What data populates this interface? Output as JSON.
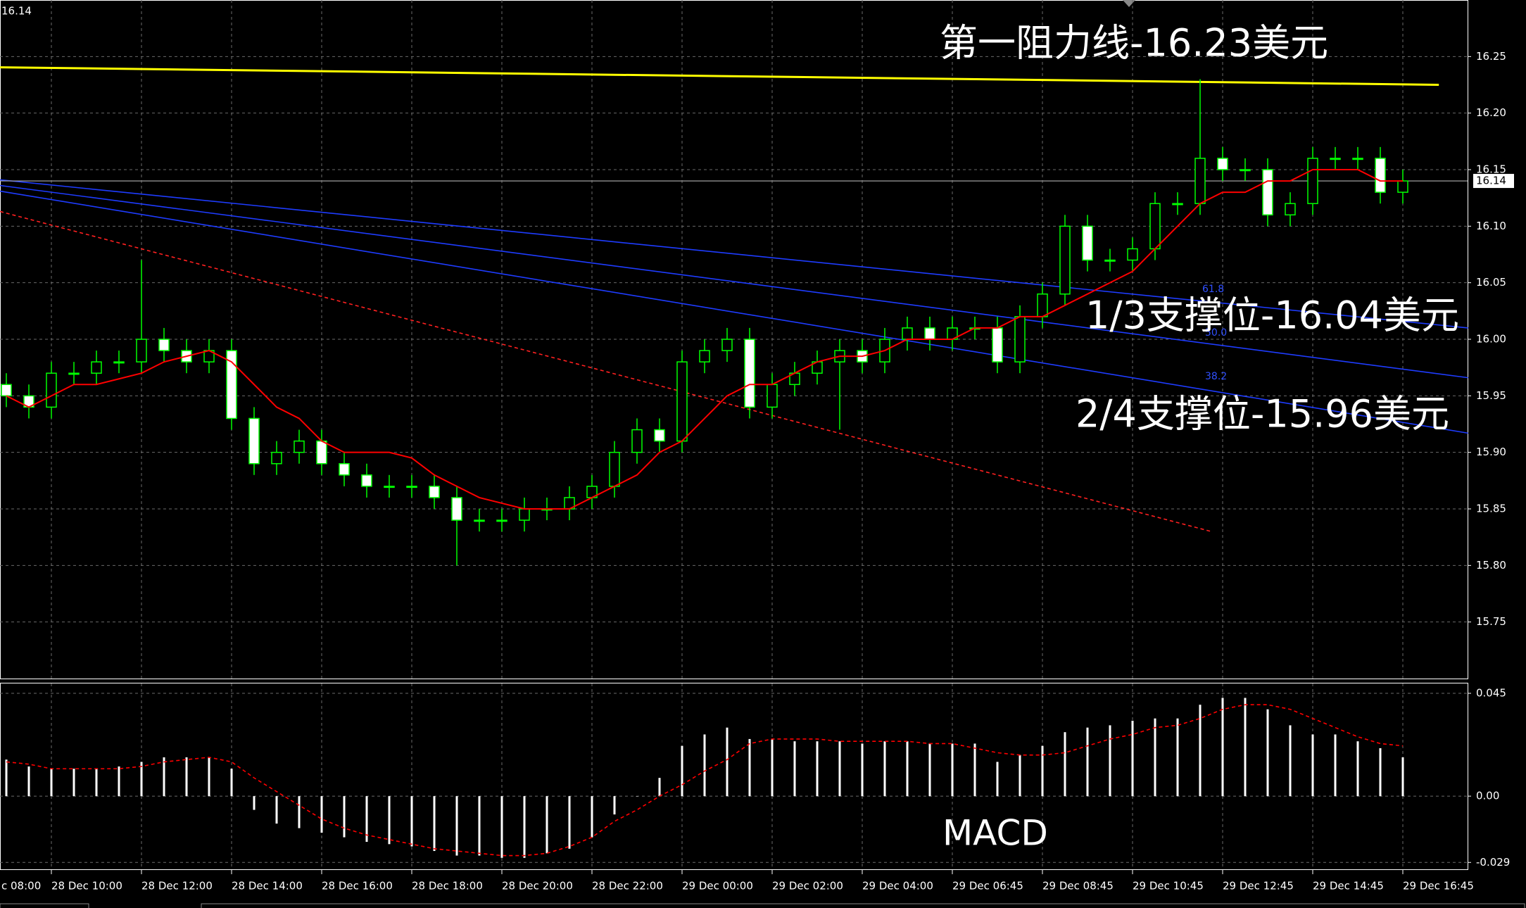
{
  "chart_data": [
    {
      "type": "candlestick",
      "open": [
        15.96,
        15.95,
        15.94,
        15.97,
        15.97,
        15.98,
        15.98,
        16.0,
        15.99,
        15.98,
        15.99,
        15.93,
        15.89,
        15.9,
        15.91,
        15.89,
        15.88,
        15.87,
        15.87,
        15.87,
        15.86,
        15.84,
        15.84,
        15.84,
        15.85,
        15.85,
        15.86,
        15.87,
        15.9,
        15.92,
        15.91,
        15.98,
        15.99,
        16.0,
        15.94,
        15.96,
        15.97,
        15.98,
        15.99,
        15.98,
        16.0,
        16.01,
        16.0,
        16.01,
        16.01,
        15.98,
        16.02,
        16.04,
        16.1,
        16.07,
        16.07,
        16.08,
        16.12,
        16.12,
        16.16,
        16.15,
        16.15,
        16.11,
        16.12,
        16.16,
        16.16,
        16.16,
        16.13
      ],
      "high": [
        15.97,
        15.96,
        15.98,
        15.98,
        15.99,
        15.99,
        16.07,
        16.01,
        16.0,
        16.0,
        16.0,
        15.94,
        15.91,
        15.92,
        15.92,
        15.9,
        15.89,
        15.88,
        15.88,
        15.88,
        15.87,
        15.85,
        15.85,
        15.86,
        15.86,
        15.87,
        15.88,
        15.91,
        15.93,
        15.93,
        15.99,
        16.0,
        16.01,
        16.01,
        15.97,
        15.98,
        15.99,
        16.0,
        16.0,
        16.01,
        16.02,
        16.02,
        16.02,
        16.02,
        16.02,
        16.03,
        16.05,
        16.11,
        16.11,
        16.08,
        16.09,
        16.13,
        16.13,
        16.23,
        16.17,
        16.16,
        16.16,
        16.13,
        16.17,
        16.17,
        16.17,
        16.17,
        16.15
      ],
      "low": [
        15.94,
        15.93,
        15.93,
        15.96,
        15.96,
        15.97,
        15.97,
        15.98,
        15.97,
        15.97,
        15.92,
        15.88,
        15.88,
        15.89,
        15.88,
        15.87,
        15.86,
        15.86,
        15.86,
        15.85,
        15.8,
        15.83,
        15.83,
        15.83,
        15.84,
        15.84,
        15.85,
        15.86,
        15.89,
        15.9,
        15.9,
        15.97,
        15.98,
        15.93,
        15.93,
        15.95,
        15.96,
        15.92,
        15.97,
        15.97,
        15.99,
        15.99,
        15.99,
        16.0,
        15.97,
        15.97,
        16.01,
        16.03,
        16.06,
        16.06,
        16.06,
        16.07,
        16.11,
        16.11,
        16.14,
        16.14,
        16.1,
        16.1,
        16.11,
        16.15,
        16.15,
        16.12,
        16.12
      ],
      "close": [
        15.95,
        15.94,
        15.97,
        15.97,
        15.98,
        15.98,
        16.0,
        15.99,
        15.98,
        15.99,
        15.93,
        15.89,
        15.9,
        15.91,
        15.89,
        15.88,
        15.87,
        15.87,
        15.87,
        15.86,
        15.84,
        15.84,
        15.84,
        15.85,
        15.85,
        15.86,
        15.87,
        15.9,
        15.92,
        15.91,
        15.98,
        15.99,
        16.0,
        15.94,
        15.96,
        15.97,
        15.98,
        15.99,
        15.98,
        16.0,
        16.01,
        16.0,
        16.01,
        16.01,
        15.98,
        16.02,
        16.04,
        16.1,
        16.07,
        16.07,
        16.08,
        16.12,
        16.12,
        16.16,
        16.15,
        16.15,
        16.11,
        16.12,
        16.16,
        16.16,
        16.16,
        16.13,
        16.14
      ],
      "up_color": "#00ff00",
      "up_fill": "#000000",
      "down_fill": "#ffffff",
      "ma": {
        "color": "#ff0000",
        "values": [
          15.95,
          15.94,
          15.95,
          15.96,
          15.96,
          15.965,
          15.97,
          15.98,
          15.985,
          15.99,
          15.98,
          15.96,
          15.94,
          15.93,
          15.91,
          15.9,
          15.9,
          15.9,
          15.895,
          15.88,
          15.87,
          15.86,
          15.855,
          15.85,
          15.85,
          15.85,
          15.86,
          15.87,
          15.88,
          15.9,
          15.91,
          15.93,
          15.95,
          15.96,
          15.96,
          15.97,
          15.98,
          15.985,
          15.985,
          15.99,
          16.0,
          16.0,
          16.0,
          16.01,
          16.01,
          16.02,
          16.02,
          16.03,
          16.04,
          16.05,
          16.06,
          16.08,
          16.1,
          16.12,
          16.13,
          16.13,
          16.14,
          16.14,
          16.15,
          16.15,
          16.15,
          16.14,
          16.14
        ]
      },
      "trend_lines": [
        {
          "color": "#ffff00",
          "dashed": false,
          "x": [
            -0.28,
            63.6
          ],
          "y": [
            16.2405,
            16.225
          ]
        },
        {
          "color": "#1e3cff",
          "dashed": false,
          "x": [
            -0.28,
            64.9
          ],
          "y": [
            16.141,
            16.01
          ]
        },
        {
          "color": "#1e3cff",
          "dashed": false,
          "x": [
            -0.28,
            64.9
          ],
          "y": [
            16.136,
            15.966
          ]
        },
        {
          "color": "#1e3cff",
          "dashed": false,
          "x": [
            -0.28,
            64.9
          ],
          "y": [
            16.131,
            15.917
          ]
        },
        {
          "color": "#ff2020",
          "dashed": true,
          "x": [
            -0.28,
            53.5
          ],
          "y": [
            16.113,
            15.83
          ]
        }
      ],
      "fib_labels": [
        "61.8",
        "50.0",
        "38.2"
      ],
      "annotations": [
        "第一阻力线-16.23美元",
        "1/3支撑位-16.04美元",
        "2/4支撑位-15.96美元"
      ],
      "current_price": 16.14,
      "ylim": [
        15.7,
        16.3
      ],
      "yticks": [
        16.25,
        {
          "value": 16.2,
          "label": "16.20"
        },
        16.15,
        {
          "value": 16.1,
          "label": "16.10"
        },
        16.05,
        {
          "value": 16,
          "label": "16.00"
        },
        15.95,
        {
          "value": 15.9,
          "label": "15.90"
        },
        15.85,
        {
          "value": 15.8,
          "label": "15.80"
        },
        15.75
      ],
      "xticks": [
        {
          "value": -2,
          "label": "c 08:00"
        },
        {
          "value": 2,
          "label": "28 Dec 10:00"
        },
        {
          "value": 6,
          "label": "28 Dec 12:00"
        },
        {
          "value": 10,
          "label": "28 Dec 14:00"
        },
        {
          "value": 14,
          "label": "28 Dec 16:00"
        },
        {
          "value": 18,
          "label": "28 Dec 18:00"
        },
        {
          "value": 22,
          "label": "28 Dec 20:00"
        },
        {
          "value": 26,
          "label": "28 Dec 22:00"
        },
        {
          "value": 30,
          "label": "29 Dec 00:00"
        },
        {
          "value": 34,
          "label": "29 Dec 02:00"
        },
        {
          "value": 38,
          "label": "29 Dec 04:00"
        },
        {
          "value": 42,
          "label": "29 Dec 06:45"
        },
        {
          "value": 46,
          "label": "29 Dec 08:45"
        },
        {
          "value": 50,
          "label": "29 Dec 10:45"
        },
        {
          "value": 54,
          "label": "29 Dec 12:45"
        },
        {
          "value": 58,
          "label": "29 Dec 14:45"
        },
        {
          "value": 62,
          "label": "29 Dec 16:45"
        }
      ],
      "grid": true
    },
    {
      "type": "macd",
      "title": "MACD",
      "histogram": {
        "color": "#ffffff",
        "values": [
          0.016,
          0.013,
          0.012,
          0.012,
          0.012,
          0.013,
          0.015,
          0.017,
          0.017,
          0.017,
          0.012,
          -0.006,
          -0.012,
          -0.014,
          -0.016,
          -0.018,
          -0.02,
          -0.021,
          -0.022,
          -0.024,
          -0.026,
          -0.026,
          -0.027,
          -0.027,
          -0.025,
          -0.023,
          -0.018,
          -0.008,
          0.0,
          0.008,
          0.022,
          0.027,
          0.03,
          0.025,
          0.025,
          0.024,
          0.024,
          0.024,
          0.023,
          0.024,
          0.024,
          0.023,
          0.023,
          0.023,
          0.015,
          0.018,
          0.022,
          0.028,
          0.03,
          0.031,
          0.033,
          0.034,
          0.034,
          0.04,
          0.043,
          0.043,
          0.038,
          0.031,
          0.027,
          0.027,
          0.024,
          0.021,
          0.017
        ]
      },
      "signal": {
        "color": "#ff0000",
        "values": [
          0.015,
          0.014,
          0.012,
          0.012,
          0.012,
          0.012,
          0.013,
          0.015,
          0.016,
          0.017,
          0.015,
          0.008,
          0.002,
          -0.004,
          -0.01,
          -0.014,
          -0.017,
          -0.019,
          -0.021,
          -0.023,
          -0.024,
          -0.025,
          -0.026,
          -0.026,
          -0.025,
          -0.022,
          -0.018,
          -0.011,
          -0.006,
          0.0,
          0.005,
          0.011,
          0.016,
          0.023,
          0.025,
          0.025,
          0.025,
          0.024,
          0.024,
          0.024,
          0.024,
          0.023,
          0.023,
          0.021,
          0.019,
          0.018,
          0.018,
          0.019,
          0.022,
          0.025,
          0.027,
          0.03,
          0.031,
          0.034,
          0.038,
          0.04,
          0.04,
          0.038,
          0.034,
          0.03,
          0.026,
          0.023,
          0.022
        ]
      },
      "ylim": [
        -0.032,
        0.049
      ],
      "yticks": [
        0.045,
        {
          "value": 0,
          "label": "0.00"
        },
        -0.029
      ],
      "grid": true
    }
  ]
}
